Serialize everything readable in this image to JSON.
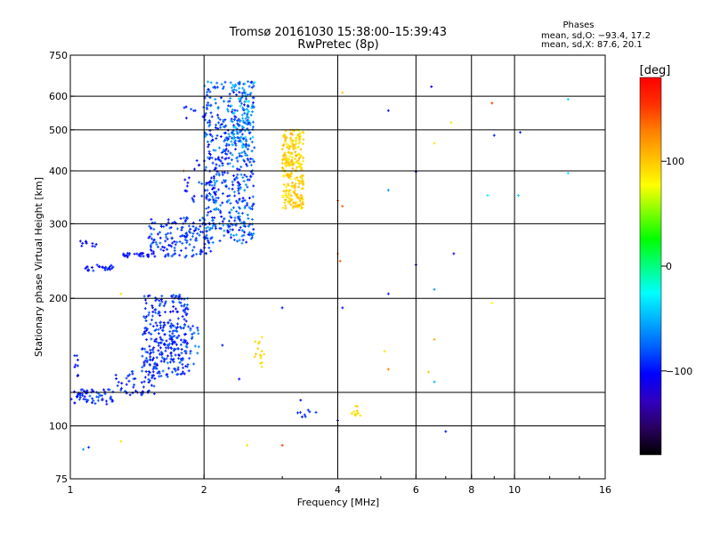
{
  "chart_data": {
    "type": "scatter",
    "title": "Tromsø 20161030 15:38:00–15:39:43",
    "subtitle": "RwPretec (8p)",
    "xlabel": "Frequency [MHz]",
    "ylabel": "Stationary phase Virtual Height [km]",
    "x_scale": "log",
    "y_scale": "log",
    "xlim": [
      1,
      16
    ],
    "ylim": [
      75,
      750
    ],
    "x_ticks": [
      1,
      2,
      4,
      6,
      8,
      10,
      16
    ],
    "x_tick_labels": [
      "1",
      "2",
      "4",
      "6",
      "8",
      "10",
      "16"
    ],
    "y_ticks": [
      75,
      100,
      200,
      300,
      400,
      500,
      600,
      750
    ],
    "y_tick_labels": [
      "75",
      "100",
      "200",
      "300",
      "400",
      "500",
      "600",
      "750"
    ],
    "x_gridlines": [
      2,
      4,
      6,
      8,
      10
    ],
    "y_gridlines": [
      100,
      120,
      200,
      300,
      400,
      500,
      600
    ],
    "grid": true,
    "info": {
      "heading": "Phases",
      "line1": "mean, sd,O: −93.4, 17.2",
      "line2": "mean, sd,X: 87.6, 20.1"
    },
    "colorbar": {
      "label": "[deg]",
      "range": [
        -180,
        180
      ],
      "ticks": [
        100,
        0,
        -100
      ],
      "tick_labels": [
        "100",
        "0",
        "−100"
      ],
      "colormap": [
        "#000000",
        "#2a0060",
        "#3000c0",
        "#0000ff",
        "#0060ff",
        "#00b0ff",
        "#00ffff",
        "#00ff80",
        "#00ff00",
        "#80ff00",
        "#ffff00",
        "#ffc000",
        "#ff8000",
        "#ff3000",
        "#ff0000"
      ]
    },
    "clusters": [
      {
        "x_range": [
          1.0,
          1.25
        ],
        "y_range": [
          112,
          122
        ],
        "n": 60,
        "phase": [
          -105,
          -80
        ]
      },
      {
        "x_range": [
          1.25,
          1.55
        ],
        "y_range": [
          118,
          135
        ],
        "n": 50,
        "phase": [
          -105,
          -80
        ]
      },
      {
        "x_range": [
          1.45,
          1.85
        ],
        "y_range": [
          130,
          205
        ],
        "n": 280,
        "phase": [
          -110,
          -75
        ]
      },
      {
        "x_range": [
          1.65,
          1.95
        ],
        "y_range": [
          140,
          175
        ],
        "n": 40,
        "phase": [
          -100,
          -60
        ]
      },
      {
        "x_range": [
          1.02,
          1.05
        ],
        "y_range": [
          130,
          150
        ],
        "n": 8,
        "phase": [
          -110,
          -90
        ]
      },
      {
        "x_range": [
          1.08,
          1.25
        ],
        "y_range": [
          232,
          240
        ],
        "n": 25,
        "phase": [
          -110,
          -85
        ]
      },
      {
        "x_range": [
          1.05,
          1.15
        ],
        "y_range": [
          265,
          273
        ],
        "n": 10,
        "phase": [
          -110,
          -90
        ]
      },
      {
        "x_range": [
          1.3,
          1.5
        ],
        "y_range": [
          250,
          256
        ],
        "n": 25,
        "phase": [
          -110,
          -90
        ]
      },
      {
        "x_range": [
          1.5,
          2.1
        ],
        "y_range": [
          250,
          310
        ],
        "n": 160,
        "phase": [
          -110,
          -70
        ]
      },
      {
        "x_range": [
          1.8,
          2.2
        ],
        "y_range": [
          330,
          430
        ],
        "n": 40,
        "phase": [
          -110,
          -75
        ]
      },
      {
        "x_range": [
          2.0,
          2.6
        ],
        "y_range": [
          270,
          650
        ],
        "n": 480,
        "phase": [
          -110,
          -55
        ]
      },
      {
        "x_range": [
          2.3,
          2.6
        ],
        "y_range": [
          450,
          650
        ],
        "n": 110,
        "phase": [
          -90,
          -30
        ]
      },
      {
        "x_range": [
          1.8,
          2.1
        ],
        "y_range": [
          520,
          580
        ],
        "n": 12,
        "phase": [
          -110,
          -80
        ]
      },
      {
        "x_range": [
          3.0,
          3.35
        ],
        "y_range": [
          325,
          500
        ],
        "n": 260,
        "phase": [
          80,
          110
        ]
      },
      {
        "x_range": [
          2.6,
          2.75
        ],
        "y_range": [
          135,
          160
        ],
        "n": 14,
        "phase": [
          85,
          105
        ]
      },
      {
        "x_range": [
          4.3,
          4.5
        ],
        "y_range": [
          105,
          112
        ],
        "n": 12,
        "phase": [
          85,
          105
        ]
      },
      {
        "x_range": [
          3.2,
          3.6
        ],
        "y_range": [
          105,
          110
        ],
        "n": 8,
        "phase": [
          -100,
          -85
        ]
      }
    ],
    "scattered_points": [
      {
        "x": 4.1,
        "y": 612,
        "phase": 100
      },
      {
        "x": 5.2,
        "y": 555,
        "phase": -100
      },
      {
        "x": 6.5,
        "y": 632,
        "phase": -110
      },
      {
        "x": 6.6,
        "y": 465,
        "phase": 90
      },
      {
        "x": 7.2,
        "y": 520,
        "phase": 90
      },
      {
        "x": 8.9,
        "y": 578,
        "phase": 150
      },
      {
        "x": 9.0,
        "y": 485,
        "phase": -100
      },
      {
        "x": 10.3,
        "y": 493,
        "phase": -100
      },
      {
        "x": 13.2,
        "y": 590,
        "phase": -40
      },
      {
        "x": 13.2,
        "y": 395,
        "phase": -30
      },
      {
        "x": 6.0,
        "y": 398,
        "phase": -100
      },
      {
        "x": 5.2,
        "y": 360,
        "phase": -60
      },
      {
        "x": 8.7,
        "y": 350,
        "phase": -30
      },
      {
        "x": 10.2,
        "y": 350,
        "phase": -40
      },
      {
        "x": 4.0,
        "y": 340,
        "phase": 140
      },
      {
        "x": 4.1,
        "y": 330,
        "phase": 140
      },
      {
        "x": 7.3,
        "y": 255,
        "phase": -110
      },
      {
        "x": 6.0,
        "y": 240,
        "phase": -100
      },
      {
        "x": 5.2,
        "y": 205,
        "phase": -100
      },
      {
        "x": 6.6,
        "y": 210,
        "phase": -60
      },
      {
        "x": 4.0,
        "y": 255,
        "phase": 140
      },
      {
        "x": 4.05,
        "y": 245,
        "phase": 140
      },
      {
        "x": 3.0,
        "y": 190,
        "phase": -100
      },
      {
        "x": 2.7,
        "y": 162,
        "phase": 90
      },
      {
        "x": 4.1,
        "y": 190,
        "phase": -100
      },
      {
        "x": 5.1,
        "y": 150,
        "phase": 90
      },
      {
        "x": 5.2,
        "y": 136,
        "phase": 130
      },
      {
        "x": 6.6,
        "y": 160,
        "phase": 110
      },
      {
        "x": 6.4,
        "y": 134,
        "phase": 100
      },
      {
        "x": 6.6,
        "y": 127,
        "phase": -50
      },
      {
        "x": 7.0,
        "y": 97,
        "phase": -100
      },
      {
        "x": 8.9,
        "y": 195,
        "phase": 80
      },
      {
        "x": 3.3,
        "y": 115,
        "phase": -100
      },
      {
        "x": 4.0,
        "y": 103,
        "phase": -100
      },
      {
        "x": 2.4,
        "y": 129,
        "phase": -100
      },
      {
        "x": 2.5,
        "y": 90,
        "phase": 90
      },
      {
        "x": 3.0,
        "y": 90,
        "phase": 150
      },
      {
        "x": 1.3,
        "y": 92,
        "phase": 90
      },
      {
        "x": 1.07,
        "y": 88,
        "phase": -60
      },
      {
        "x": 1.1,
        "y": 89,
        "phase": -90
      },
      {
        "x": 2.2,
        "y": 155,
        "phase": -100
      },
      {
        "x": 1.3,
        "y": 205,
        "phase": 90
      },
      {
        "x": 1.8,
        "y": 400,
        "phase": 130
      }
    ]
  }
}
